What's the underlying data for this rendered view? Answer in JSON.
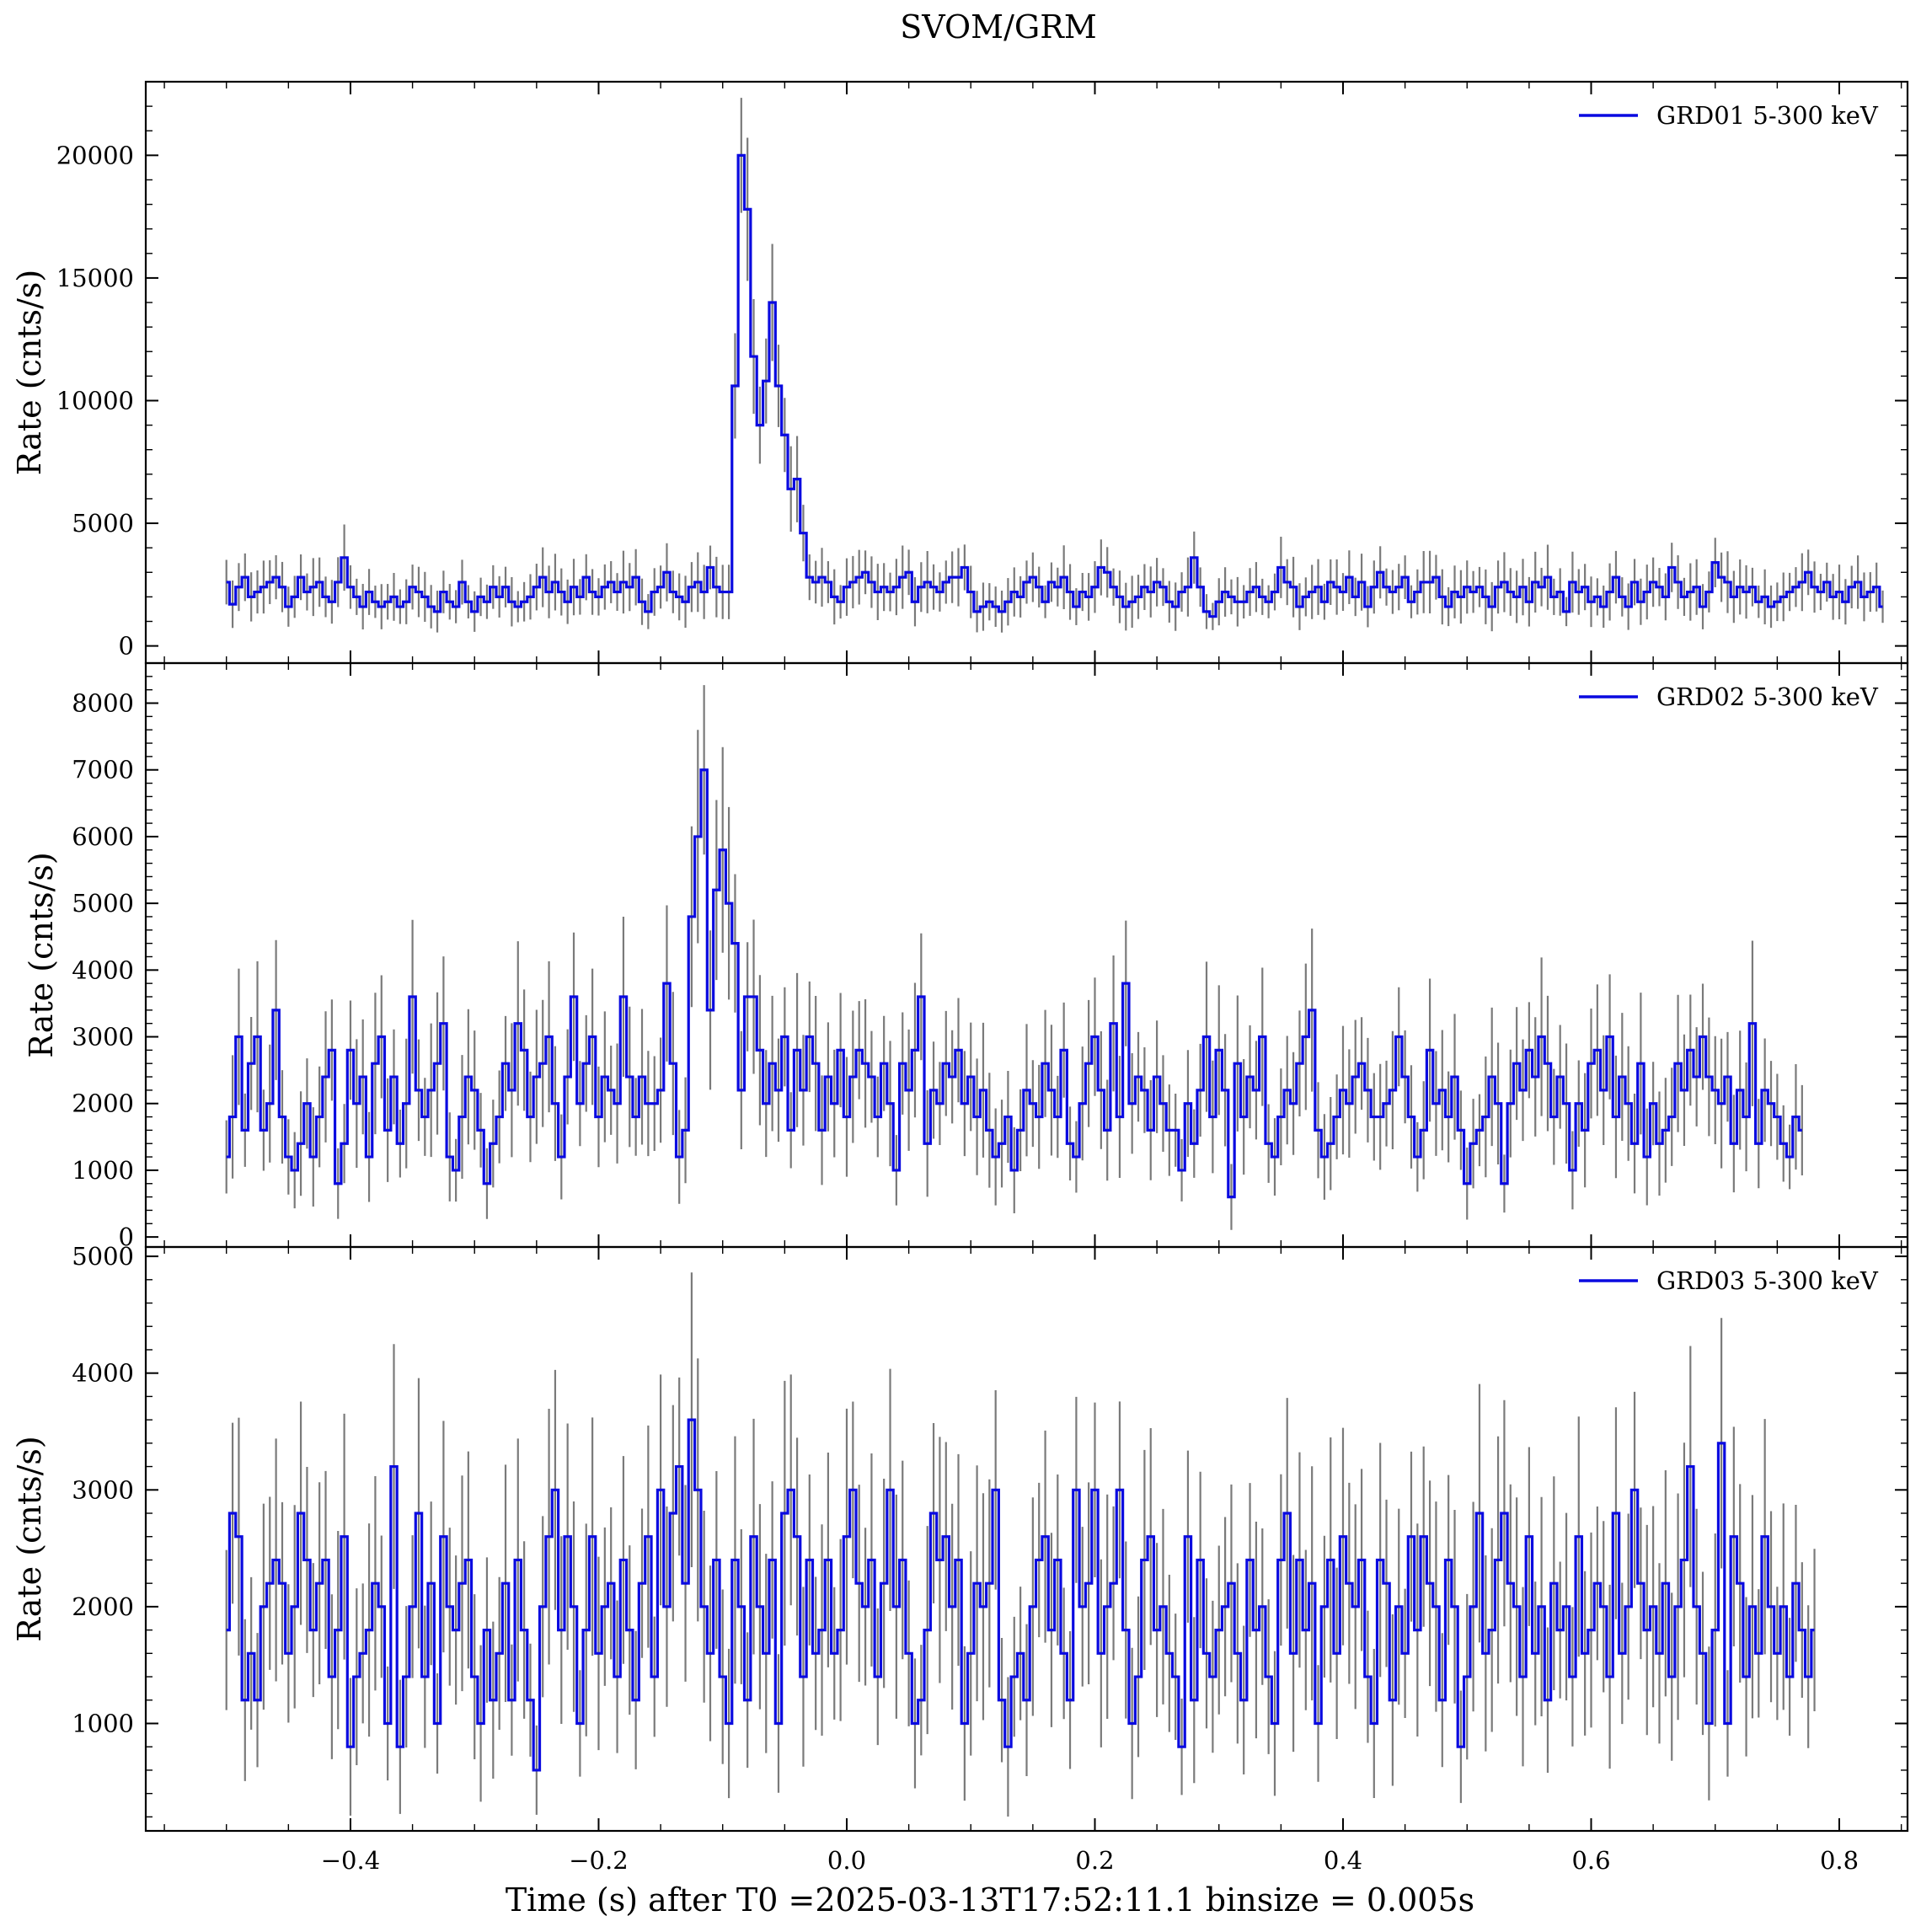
{
  "figure": {
    "title": "SVOM/GRM",
    "xlabel": "Time (s) after T0 =2025-03-13T17:52:11.1 binsize = 0.005s"
  },
  "chart_data": [
    {
      "type": "line",
      "drawstyle": "steps-mid with error bars",
      "ylabel": "Rate (cnts/s)",
      "legend_placement": "top-right",
      "xlim": [
        -0.565,
        0.855
      ],
      "ylim": [
        -700,
        23000
      ],
      "xticks": [
        -0.4,
        -0.2,
        0.0,
        0.2,
        0.4,
        0.6,
        0.8
      ],
      "xtick_labels": [
        "−0.4",
        "−0.2",
        "0.0",
        "0.2",
        "0.4",
        "0.6",
        "0.8"
      ],
      "yticks": [
        0,
        5000,
        10000,
        15000,
        20000
      ],
      "ytick_labels": [
        "0",
        "5000",
        "10000",
        "15000",
        "20000"
      ],
      "binsize": 0.005,
      "series": [
        {
          "name": "GRD01 5-300 keV",
          "color": "#0a0ae0",
          "error_color": "#7a7a7a",
          "x_start": -0.5,
          "x_end": 0.79,
          "values": [
            2600,
            1700,
            2400,
            2800,
            2000,
            2200,
            2400,
            2600,
            2800,
            2400,
            1600,
            2000,
            2800,
            2200,
            2400,
            2600,
            2000,
            1800,
            2600,
            3600,
            2400,
            2000,
            1600,
            2200,
            1800,
            1600,
            1800,
            2000,
            1600,
            1800,
            2400,
            2200,
            2000,
            1600,
            1400,
            2200,
            1800,
            1600,
            2600,
            1800,
            1400,
            2000,
            1800,
            2400,
            2000,
            2400,
            1800,
            1600,
            1800,
            2000,
            2400,
            2800,
            2200,
            2600,
            2200,
            1800,
            2400,
            2000,
            2800,
            2200,
            2000,
            2400,
            2600,
            2200,
            2600,
            2400,
            2800,
            1800,
            1400,
            2200,
            2400,
            3000,
            2200,
            2000,
            1800,
            2400,
            2600,
            2200,
            3200,
            2400,
            2200,
            2200,
            10600,
            20000,
            17800,
            11800,
            9000,
            10800,
            14000,
            10600,
            8600,
            6400,
            6800,
            4600,
            2800,
            2600,
            2800,
            2600,
            2000,
            1800,
            2400,
            2600,
            2800,
            3000,
            2600,
            2200,
            2400,
            2200,
            2400,
            2800,
            3000,
            1800,
            2400,
            2600,
            2400,
            2200,
            2600,
            2800,
            2800,
            3200,
            2200,
            1400,
            1600,
            1800,
            1600,
            1400,
            1800,
            2200,
            2000,
            2600,
            2800,
            2400,
            1800,
            2600,
            2400,
            2800,
            2200,
            1600,
            2200,
            2000,
            2400,
            3200,
            3000,
            2400,
            2000,
            1600,
            1800,
            2000,
            2400,
            2200,
            2600,
            2400,
            1800,
            1600,
            2200,
            2400,
            3600,
            2400,
            1400,
            1200,
            1800,
            2200,
            2000,
            1800,
            1800,
            2200,
            2400,
            2000,
            1800,
            2200,
            3200,
            2600,
            2400,
            1600,
            2000,
            2200,
            2400,
            1800,
            2600,
            2400,
            2200,
            2800,
            2000,
            2600,
            1600,
            2400,
            3000,
            2400,
            2200,
            2400,
            2800,
            1800,
            2200,
            2600,
            2600,
            2800,
            2000,
            1600,
            2200,
            2000,
            2400,
            2200,
            2400,
            2000,
            1600,
            2400,
            2600,
            2200,
            2000,
            2400,
            1800,
            2600,
            2400,
            2800,
            2000,
            2200,
            1400,
            2600,
            2200,
            2400,
            1800,
            2000,
            1600,
            2200,
            2800,
            2000,
            1600,
            2600,
            1800,
            2200,
            2600,
            2400,
            2000,
            3200,
            2600,
            2000,
            2200,
            2400,
            1600,
            2200,
            3400,
            2800,
            2600,
            2000,
            2400,
            2200,
            2400,
            1800,
            2000,
            1600,
            1800,
            2000,
            2200,
            2400,
            2600,
            3000,
            2400,
            2200,
            2600,
            2000,
            2200,
            1800,
            2400,
            2600,
            2000,
            2200,
            2400,
            1600
          ]
        }
      ]
    },
    {
      "type": "line",
      "drawstyle": "steps-mid with error bars",
      "ylabel": "Rate (cnts/s)",
      "legend_placement": "top-right",
      "xlim": [
        -0.565,
        0.855
      ],
      "ylim": [
        -150,
        8600
      ],
      "xticks": [
        -0.4,
        -0.2,
        0.0,
        0.2,
        0.4,
        0.6,
        0.8
      ],
      "xtick_labels": [
        "−0.4",
        "−0.2",
        "0.0",
        "0.2",
        "0.4",
        "0.6",
        "0.8"
      ],
      "yticks": [
        0,
        1000,
        2000,
        3000,
        4000,
        5000,
        6000,
        7000,
        8000
      ],
      "ytick_labels": [
        "0",
        "1000",
        "2000",
        "3000",
        "4000",
        "5000",
        "6000",
        "7000",
        "8000"
      ],
      "binsize": 0.005,
      "series": [
        {
          "name": "GRD02 5-300 keV",
          "color": "#0a0ae0",
          "error_color": "#7a7a7a",
          "x_start": -0.5,
          "x_end": 0.79,
          "values": [
            1200,
            1800,
            3000,
            1600,
            2600,
            3000,
            1600,
            2000,
            3400,
            1800,
            1200,
            1000,
            1400,
            2000,
            1200,
            1800,
            2400,
            2800,
            800,
            1400,
            2800,
            2000,
            2400,
            1200,
            2600,
            3000,
            1600,
            2400,
            1400,
            2000,
            3600,
            2200,
            1800,
            2200,
            2600,
            3200,
            1200,
            1000,
            1800,
            2400,
            2200,
            1600,
            800,
            1400,
            1800,
            2600,
            2200,
            3200,
            2800,
            1800,
            2400,
            2600,
            3000,
            2000,
            1200,
            2400,
            3600,
            2000,
            2600,
            3000,
            1800,
            2400,
            2200,
            2000,
            3600,
            2400,
            1800,
            2400,
            2000,
            2000,
            2200,
            3800,
            2600,
            1200,
            1600,
            4800,
            6000,
            7000,
            3400,
            5200,
            5800,
            5000,
            4400,
            2200,
            3600,
            3600,
            2800,
            2000,
            2600,
            2200,
            3000,
            1600,
            2800,
            2200,
            3000,
            2600,
            1600,
            2400,
            2000,
            2800,
            1800,
            2400,
            2800,
            2600,
            2400,
            1800,
            2600,
            2000,
            1000,
            2600,
            2200,
            2800,
            3600,
            1400,
            2200,
            2000,
            2600,
            2400,
            2800,
            2000,
            2400,
            1800,
            2200,
            1600,
            1200,
            1400,
            1800,
            1000,
            1600,
            2200,
            2000,
            1800,
            2600,
            2200,
            1800,
            2800,
            1400,
            1200,
            2000,
            2600,
            3000,
            2200,
            1600,
            3200,
            1800,
            3800,
            2000,
            2400,
            2200,
            1600,
            2400,
            2000,
            1600,
            1600,
            1000,
            2000,
            1400,
            2200,
            3000,
            1800,
            2800,
            2200,
            600,
            2600,
            1800,
            2400,
            2200,
            3000,
            1400,
            1200,
            1800,
            2200,
            2000,
            2600,
            3000,
            3400,
            1600,
            1200,
            1400,
            1800,
            2200,
            2000,
            2400,
            2600,
            2200,
            1800,
            1800,
            2000,
            2200,
            3000,
            2400,
            1800,
            1200,
            1600,
            2800,
            2000,
            2200,
            1800,
            2400,
            1600,
            800,
            1400,
            1600,
            1800,
            2400,
            2000,
            800,
            2000,
            2600,
            2200,
            2800,
            2400,
            3000,
            2600,
            1800,
            2400,
            2000,
            1000,
            2000,
            1600,
            2600,
            2800,
            2200,
            3000,
            1800,
            2400,
            2000,
            1400,
            2600,
            1200,
            2000,
            1400,
            1600,
            1800,
            2600,
            2200,
            2800,
            2400,
            3000,
            2400,
            2200,
            2000,
            2400,
            1400,
            2200,
            1800,
            3200,
            1400,
            2200,
            2000,
            1800,
            1400,
            1200,
            1800,
            1600
          ]
        }
      ]
    },
    {
      "type": "line",
      "drawstyle": "steps-mid with error bars",
      "ylabel": "Rate (cnts/s)",
      "legend_placement": "top-right",
      "xlim": [
        -0.565,
        0.855
      ],
      "ylim": [
        80,
        5080
      ],
      "xticks": [
        -0.4,
        -0.2,
        0.0,
        0.2,
        0.4,
        0.6,
        0.8
      ],
      "xtick_labels": [
        "−0.4",
        "−0.2",
        "0.0",
        "0.2",
        "0.4",
        "0.6",
        "0.8"
      ],
      "yticks": [
        1000,
        2000,
        3000,
        4000,
        5000
      ],
      "ytick_labels": [
        "1000",
        "2000",
        "3000",
        "4000",
        "5000"
      ],
      "binsize": 0.005,
      "series": [
        {
          "name": "GRD03 5-300 keV",
          "color": "#0a0ae0",
          "error_color": "#7a7a7a",
          "x_start": -0.5,
          "x_end": 0.79,
          "values": [
            1800,
            2800,
            2600,
            1200,
            1600,
            1200,
            2000,
            2200,
            2400,
            2200,
            1600,
            2000,
            2800,
            2400,
            1800,
            2200,
            2400,
            1400,
            1800,
            2600,
            800,
            1400,
            1600,
            1800,
            2200,
            2000,
            1000,
            3200,
            800,
            1400,
            2000,
            2800,
            1400,
            2200,
            1000,
            2600,
            2000,
            1800,
            2200,
            2400,
            1400,
            1000,
            1800,
            1200,
            1600,
            2200,
            1200,
            2400,
            1800,
            1200,
            600,
            2000,
            2600,
            3000,
            1800,
            2600,
            2000,
            1000,
            1800,
            2600,
            1600,
            2000,
            2200,
            1400,
            2400,
            1800,
            1200,
            2200,
            2600,
            1400,
            3000,
            2000,
            2800,
            3200,
            2200,
            3600,
            3000,
            2000,
            1600,
            2400,
            1400,
            1000,
            2400,
            2000,
            1200,
            2600,
            2000,
            1600,
            2400,
            1000,
            2800,
            3000,
            2600,
            1400,
            2400,
            1600,
            1800,
            2400,
            1600,
            1800,
            2600,
            3000,
            2200,
            2000,
            2400,
            1400,
            2200,
            3000,
            2000,
            2400,
            1600,
            1000,
            1200,
            1800,
            2800,
            2400,
            2600,
            2000,
            2400,
            1000,
            1600,
            2200,
            2000,
            2200,
            3000,
            1200,
            800,
            1400,
            1600,
            1200,
            2000,
            2400,
            2600,
            1800,
            2400,
            1600,
            1200,
            3000,
            2000,
            2200,
            3000,
            1600,
            2000,
            2200,
            3000,
            1800,
            1000,
            1400,
            2400,
            2600,
            1800,
            2000,
            1600,
            1400,
            800,
            2600,
            1200,
            2400,
            1600,
            1400,
            1800,
            2000,
            2200,
            1600,
            1200,
            2400,
            1800,
            2000,
            1400,
            1000,
            2400,
            2800,
            1600,
            2400,
            1800,
            2200,
            1000,
            2000,
            2400,
            1600,
            2600,
            2200,
            2000,
            2400,
            1400,
            1000,
            2400,
            2200,
            1200,
            2000,
            1600,
            2600,
            1800,
            2600,
            2200,
            2000,
            1200,
            2400,
            2000,
            800,
            1400,
            2000,
            2800,
            1600,
            1800,
            2400,
            2800,
            2200,
            2000,
            1400,
            2600,
            1600,
            2000,
            1200,
            2200,
            1800,
            2000,
            1400,
            2600,
            1600,
            1800,
            2200,
            2000,
            1400,
            2800,
            1600,
            2000,
            3000,
            2200,
            1800,
            2000,
            1600,
            2200,
            1400,
            2000,
            2400,
            3200,
            2000,
            1600,
            1000,
            1800,
            3400,
            1000,
            2600,
            2200,
            1400,
            2000,
            1600,
            2600,
            2000,
            1600,
            2000,
            1400,
            2200,
            1800,
            1400,
            1800
          ]
        }
      ]
    }
  ]
}
